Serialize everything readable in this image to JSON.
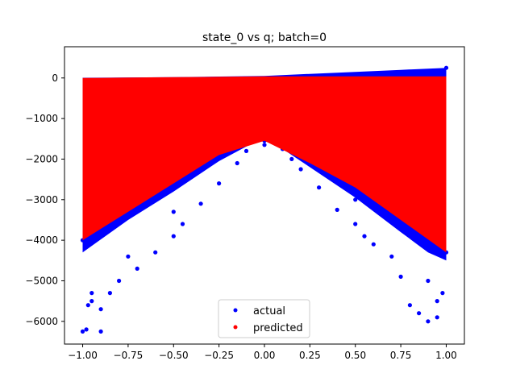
{
  "chart_data": {
    "type": "scatter",
    "title": "state_0 vs q; batch=0",
    "xlabel": "",
    "ylabel": "",
    "xlim": [
      -1.1,
      1.1
    ],
    "ylim": [
      -6560,
      770
    ],
    "xticks": [
      -1.0,
      -0.75,
      -0.5,
      -0.25,
      0.0,
      0.25,
      0.5,
      0.75,
      1.0
    ],
    "xtick_labels": [
      "−1.00",
      "−0.75",
      "−0.50",
      "−0.25",
      "0.00",
      "0.25",
      "0.50",
      "0.75",
      "1.00"
    ],
    "yticks": [
      0,
      -1000,
      -2000,
      -3000,
      -4000,
      -5000,
      -6000
    ],
    "ytick_labels": [
      "0",
      "−1000",
      "−2000",
      "−3000",
      "−4000",
      "−5000",
      "−6000"
    ],
    "grid": false,
    "legend_position": "lower center",
    "series": [
      {
        "name": "actual",
        "color": "#0000ff",
        "marker": "dot",
        "x": [
          -1.0,
          -1.0,
          -0.98,
          -0.97,
          -0.95,
          -0.9,
          -0.85,
          -0.8,
          -0.75,
          -0.7,
          -0.6,
          -0.5,
          -0.45,
          -0.35,
          -0.25,
          -0.15,
          -0.1,
          -0.05,
          0.0,
          0.0,
          0.05,
          0.1,
          0.15,
          0.2,
          0.3,
          0.4,
          0.5,
          0.55,
          0.6,
          0.7,
          0.75,
          0.8,
          0.85,
          0.9,
          0.95,
          0.98,
          1.0,
          1.0,
          -0.9,
          -0.95,
          0.95,
          0.9,
          -0.5,
          0.0,
          0.5
        ],
        "y": [
          -4000,
          -6250,
          -6200,
          -5600,
          -5500,
          -6250,
          -5300,
          -5000,
          -4400,
          -4700,
          -4300,
          -3900,
          -3600,
          -3100,
          -2600,
          -2100,
          -1800,
          -1500,
          -1450,
          -1650,
          -1500,
          -1750,
          -2000,
          -2250,
          -2700,
          -3250,
          -3600,
          -3900,
          -4100,
          -4400,
          -4900,
          -5600,
          -5800,
          -6000,
          -5900,
          -5300,
          -4300,
          250,
          -5700,
          -5300,
          -5500,
          -5000,
          -3300,
          -1550,
          -3000
        ]
      },
      {
        "name": "predicted",
        "color": "#ff0000",
        "marker": "dot",
        "x": [
          -1.0,
          -0.75,
          -0.5,
          -0.25,
          0.0,
          0.25,
          0.5,
          0.75,
          1.0
        ],
        "y_upper": [
          0,
          10,
          20,
          30,
          40,
          40,
          40,
          40,
          40
        ],
        "y_lower": [
          -4000,
          -3300,
          -2600,
          -1900,
          -1550,
          -2100,
          -2700,
          -3500,
          -4300
        ]
      }
    ]
  }
}
